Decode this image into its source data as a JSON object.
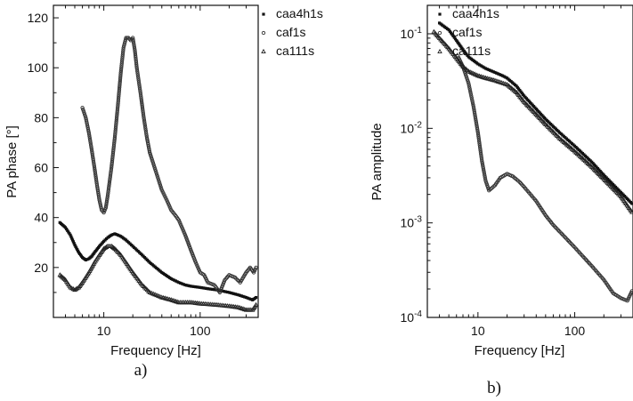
{
  "chart_data": [
    {
      "type": "scatter",
      "panel_label": "a)",
      "xlabel": "Frequency [Hz]",
      "ylabel": "PA phase [°]",
      "x_scale": "log",
      "xlim": [
        3,
        400
      ],
      "ylim": [
        0,
        125
      ],
      "x_ticks": [
        {
          "value": 10,
          "label": "10"
        },
        {
          "value": 100,
          "label": "100"
        }
      ],
      "y_ticks": [
        {
          "value": 20,
          "label": "20"
        },
        {
          "value": 40,
          "label": "40"
        },
        {
          "value": 60,
          "label": "60"
        },
        {
          "value": 80,
          "label": "80"
        },
        {
          "value": 100,
          "label": "100"
        },
        {
          "value": 120,
          "label": "120"
        }
      ],
      "grid": false,
      "legend_position": "top-right",
      "series": [
        {
          "name": "caa4h1s",
          "marker": "square",
          "points": [
            [
              3.5,
              38
            ],
            [
              4,
              36
            ],
            [
              4.5,
              33
            ],
            [
              5,
              29
            ],
            [
              5.5,
              26
            ],
            [
              6,
              24
            ],
            [
              6.5,
              23
            ],
            [
              7,
              23.5
            ],
            [
              7.5,
              24.5
            ],
            [
              8,
              26
            ],
            [
              9,
              28.5
            ],
            [
              10,
              30.5
            ],
            [
              11,
              32
            ],
            [
              12,
              33
            ],
            [
              13,
              33.5
            ],
            [
              14,
              33
            ],
            [
              15,
              32.5
            ],
            [
              17,
              31
            ],
            [
              20,
              28.5
            ],
            [
              25,
              25
            ],
            [
              30,
              22
            ],
            [
              40,
              18
            ],
            [
              50,
              15.5
            ],
            [
              60,
              14
            ],
            [
              70,
              13
            ],
            [
              80,
              12.5
            ],
            [
              100,
              12
            ],
            [
              120,
              11.5
            ],
            [
              150,
              11
            ],
            [
              200,
              10
            ],
            [
              250,
              9
            ],
            [
              300,
              8
            ],
            [
              350,
              7
            ],
            [
              380,
              8
            ]
          ]
        },
        {
          "name": "caf1s",
          "marker": "circle",
          "points": [
            [
              6,
              84
            ],
            [
              6.5,
              80
            ],
            [
              7,
              74
            ],
            [
              7.5,
              67
            ],
            [
              8,
              60
            ],
            [
              8.5,
              53
            ],
            [
              9,
              47
            ],
            [
              9.5,
              43
            ],
            [
              10,
              42
            ],
            [
              10.5,
              44
            ],
            [
              11,
              49
            ],
            [
              12,
              60
            ],
            [
              13,
              72
            ],
            [
              14,
              85
            ],
            [
              15,
              98
            ],
            [
              16,
              108
            ],
            [
              17,
              112
            ],
            [
              18,
              112
            ],
            [
              19,
              111
            ],
            [
              20,
              112
            ],
            [
              21,
              107
            ],
            [
              22,
              100
            ],
            [
              24,
              90
            ],
            [
              26,
              80
            ],
            [
              28,
              72
            ],
            [
              30,
              66
            ],
            [
              35,
              58
            ],
            [
              40,
              51
            ],
            [
              45,
              47
            ],
            [
              50,
              43
            ],
            [
              55,
              41
            ],
            [
              60,
              39
            ],
            [
              70,
              33
            ],
            [
              80,
              27
            ],
            [
              90,
              22
            ],
            [
              100,
              18
            ],
            [
              110,
              17
            ],
            [
              120,
              14
            ],
            [
              140,
              13
            ],
            [
              160,
              10
            ],
            [
              180,
              15
            ],
            [
              200,
              17
            ],
            [
              230,
              16
            ],
            [
              260,
              14
            ],
            [
              300,
              18
            ],
            [
              330,
              20
            ],
            [
              360,
              18
            ],
            [
              380,
              20
            ]
          ]
        },
        {
          "name": "ca111s",
          "marker": "triangle",
          "points": [
            [
              3.5,
              17
            ],
            [
              4,
              15
            ],
            [
              4.5,
              12
            ],
            [
              5,
              11
            ],
            [
              5.5,
              12
            ],
            [
              6,
              14
            ],
            [
              7,
              18
            ],
            [
              8,
              22
            ],
            [
              9,
              25
            ],
            [
              10,
              27.5
            ],
            [
              11,
              28.5
            ],
            [
              12,
              28.5
            ],
            [
              13,
              27.5
            ],
            [
              15,
              25
            ],
            [
              17,
              22
            ],
            [
              20,
              18
            ],
            [
              25,
              13
            ],
            [
              30,
              10
            ],
            [
              40,
              8
            ],
            [
              50,
              7
            ],
            [
              60,
              6
            ],
            [
              80,
              6
            ],
            [
              100,
              5.5
            ],
            [
              150,
              5
            ],
            [
              200,
              4.5
            ],
            [
              250,
              4
            ],
            [
              300,
              3
            ],
            [
              350,
              3
            ],
            [
              380,
              5
            ]
          ]
        }
      ]
    },
    {
      "type": "scatter",
      "panel_label": "b)",
      "xlabel": "Frequency [Hz]",
      "ylabel": "PA amplitude",
      "x_scale": "log",
      "y_scale": "log",
      "xlim": [
        3,
        400
      ],
      "ylim": [
        0.0001,
        0.2
      ],
      "x_ticks": [
        {
          "value": 10,
          "label": "10"
        },
        {
          "value": 100,
          "label": "100"
        }
      ],
      "y_ticks": [
        {
          "value": 0.0001,
          "base": "10",
          "exp": "-4"
        },
        {
          "value": 0.001,
          "base": "10",
          "exp": "-3"
        },
        {
          "value": 0.01,
          "base": "10",
          "exp": "-2"
        },
        {
          "value": 0.1,
          "base": "10",
          "exp": "-1"
        }
      ],
      "grid": false,
      "legend_position": "top-right",
      "series": [
        {
          "name": "caa4h1s",
          "marker": "square",
          "points": [
            [
              4,
              0.13
            ],
            [
              5,
              0.11
            ],
            [
              6,
              0.085
            ],
            [
              7,
              0.068
            ],
            [
              8,
              0.057
            ],
            [
              10,
              0.048
            ],
            [
              12,
              0.043
            ],
            [
              15,
              0.039
            ],
            [
              18,
              0.036
            ],
            [
              20,
              0.034
            ],
            [
              25,
              0.028
            ],
            [
              30,
              0.022
            ],
            [
              40,
              0.016
            ],
            [
              50,
              0.0125
            ],
            [
              70,
              0.009
            ],
            [
              100,
              0.0065
            ],
            [
              150,
              0.0044
            ],
            [
              200,
              0.0032
            ],
            [
              300,
              0.0021
            ],
            [
              390,
              0.0016
            ]
          ]
        },
        {
          "name": "caf1s",
          "marker": "circle",
          "points": [
            [
              6.2,
              0.058
            ],
            [
              7,
              0.045
            ],
            [
              8,
              0.03
            ],
            [
              9,
              0.017
            ],
            [
              10,
              0.009
            ],
            [
              11,
              0.0045
            ],
            [
              12,
              0.0028
            ],
            [
              13,
              0.0022
            ],
            [
              15,
              0.0025
            ],
            [
              17,
              0.003
            ],
            [
              20,
              0.0033
            ],
            [
              23,
              0.0031
            ],
            [
              27,
              0.0027
            ],
            [
              30,
              0.0024
            ],
            [
              40,
              0.0017
            ],
            [
              50,
              0.0012
            ],
            [
              60,
              0.00095
            ],
            [
              80,
              0.0007
            ],
            [
              100,
              0.00055
            ],
            [
              150,
              0.00035
            ],
            [
              200,
              0.00025
            ],
            [
              250,
              0.00018
            ],
            [
              300,
              0.00016
            ],
            [
              350,
              0.00015
            ],
            [
              390,
              0.00019
            ]
          ]
        },
        {
          "name": "ca111s",
          "marker": "triangle",
          "points": [
            [
              3.5,
              0.105
            ],
            [
              4,
              0.09
            ],
            [
              5,
              0.07
            ],
            [
              6,
              0.055
            ],
            [
              7,
              0.045
            ],
            [
              8,
              0.04
            ],
            [
              10,
              0.036
            ],
            [
              12,
              0.034
            ],
            [
              15,
              0.032
            ],
            [
              20,
              0.029
            ],
            [
              25,
              0.024
            ],
            [
              30,
              0.019
            ],
            [
              40,
              0.014
            ],
            [
              50,
              0.011
            ],
            [
              70,
              0.0078
            ],
            [
              100,
              0.0057
            ],
            [
              150,
              0.0039
            ],
            [
              200,
              0.0029
            ],
            [
              300,
              0.0019
            ],
            [
              390,
              0.0013
            ]
          ]
        }
      ]
    }
  ]
}
